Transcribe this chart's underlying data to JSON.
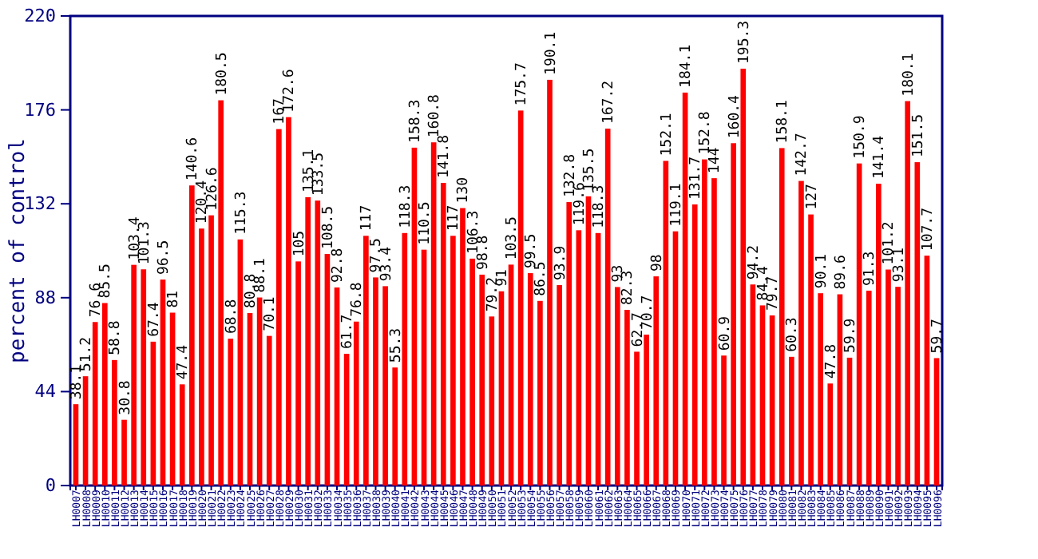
{
  "chart_data": {
    "type": "bar",
    "ylabel": "percent of control",
    "ylim": [
      0,
      220
    ],
    "yticks": [
      0,
      44,
      88,
      132,
      176,
      220
    ],
    "color": "#ff0000",
    "data_labels": true,
    "categories": [
      "LH0007",
      "LH0008",
      "LH0009",
      "LH0010",
      "LH0011",
      "LH0012",
      "LH0013",
      "LH0014",
      "LH0015",
      "LH0016",
      "LH0017",
      "LH0018",
      "LH0019",
      "LH0020",
      "LH0021",
      "LH0022",
      "LH0023",
      "LH0024",
      "LH0025",
      "LH0026",
      "LH0027",
      "LH0028",
      "LH0029",
      "LH0030",
      "LH0031",
      "LH0032",
      "LH0033",
      "LH0034",
      "LH0035",
      "LH0036",
      "LH0037",
      "LH0038",
      "LH0039",
      "LH0040",
      "LH0041",
      "LH0042",
      "LH0043",
      "LH0044",
      "LH0045",
      "LH0046",
      "LH0047",
      "LH0048",
      "LH0049",
      "LH0050",
      "LH0051",
      "LH0052",
      "LH0053",
      "LH0054",
      "LH0055",
      "LH0056",
      "LH0057",
      "LH0058",
      "LH0059",
      "LH0060",
      "LH0061",
      "LH0062",
      "LH0063",
      "LH0064",
      "LH0065",
      "LH0066",
      "LH0067",
      "LH0068",
      "LH0069",
      "LH0070",
      "LH0071",
      "LH0072",
      "LH0073",
      "LH0074",
      "LH0075",
      "LH0076",
      "LH0077",
      "LH0078",
      "LH0079",
      "LH0080",
      "LH0081",
      "LH0082",
      "LH0083",
      "LH0084",
      "LH0085",
      "LH0086",
      "LH0087",
      "LH0088",
      "LH0089",
      "LH0090",
      "LH0091",
      "LH0092",
      "LH0093",
      "LH0094",
      "LH0095",
      "LH0096"
    ],
    "values": [
      38.1,
      51.2,
      76.6,
      85.5,
      58.8,
      30.8,
      103.4,
      101.3,
      67.4,
      96.5,
      81,
      47.4,
      140.6,
      120.4,
      126.6,
      180.5,
      68.8,
      115.3,
      80.8,
      88.1,
      70.1,
      167,
      172.6,
      105,
      135.1,
      133.5,
      108.5,
      92.8,
      61.7,
      76.8,
      117,
      97.5,
      93.4,
      55.3,
      118.3,
      158.3,
      110.5,
      160.8,
      141.8,
      117,
      130,
      106.3,
      98.8,
      79.2,
      91,
      103.5,
      175.7,
      99.5,
      86.5,
      190.1,
      93.9,
      132.8,
      119.6,
      135.5,
      118.3,
      167.2,
      93,
      82.3,
      62.7,
      70.7,
      98,
      152.1,
      119.1,
      184.1,
      131.7,
      152.8,
      144,
      60.9,
      160.4,
      195.3,
      94.2,
      84.4,
      79.7,
      158.1,
      60.3,
      142.7,
      127,
      90.1,
      47.8,
      89.6,
      59.9,
      150.9,
      91.3,
      141.4,
      101.2,
      93.1,
      180.1,
      151.5,
      107.7,
      59.7
    ]
  }
}
